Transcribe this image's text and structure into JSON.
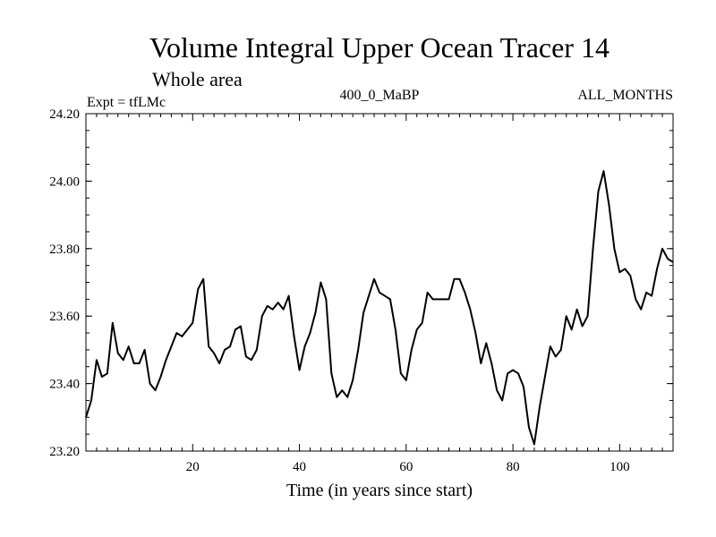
{
  "header": {
    "title": "Volume Integral Upper Ocean Tracer 14",
    "subtitle": "Whole area",
    "experiment": "Expt = tfLMc",
    "period": "400_0_MaBP",
    "months": "ALL_MONTHS"
  },
  "chart_data": {
    "type": "line",
    "title": "Volume Integral Upper Ocean Tracer 14",
    "subtitle": "Whole area",
    "xlabel": "Time (in years since start)",
    "ylabel": "",
    "xlim": [
      0,
      110
    ],
    "ylim": [
      23.2,
      24.2
    ],
    "x_ticks": [
      20,
      40,
      60,
      80,
      100
    ],
    "x_tick_labels": [
      "20",
      "40",
      "60",
      "80",
      "100"
    ],
    "y_ticks": [
      23.2,
      23.4,
      23.6,
      23.8,
      24.0,
      24.2
    ],
    "y_tick_labels": [
      "23.20",
      "23.40",
      "23.60",
      "23.80",
      "24.00",
      "24.20"
    ],
    "grid": false,
    "series": [
      {
        "name": "Volume Integral Upper Ocean Tracer 14",
        "x": [
          0,
          1,
          2,
          3,
          4,
          5,
          6,
          7,
          8,
          9,
          10,
          11,
          12,
          13,
          14,
          15,
          16,
          17,
          18,
          19,
          20,
          21,
          22,
          23,
          24,
          25,
          26,
          27,
          28,
          29,
          30,
          31,
          32,
          33,
          34,
          35,
          36,
          37,
          38,
          39,
          40,
          41,
          42,
          43,
          44,
          45,
          46,
          47,
          48,
          49,
          50,
          51,
          52,
          53,
          54,
          55,
          56,
          57,
          58,
          59,
          60,
          61,
          62,
          63,
          64,
          65,
          66,
          67,
          68,
          69,
          70,
          71,
          72,
          73,
          74,
          75,
          76,
          77,
          78,
          79,
          80,
          81,
          82,
          83,
          84,
          85,
          86,
          87,
          88,
          89,
          90,
          91,
          92,
          93,
          94,
          95,
          96,
          97,
          98,
          99,
          100,
          101,
          102,
          103,
          104,
          105,
          106,
          107,
          108,
          109,
          110
        ],
        "values": [
          23.3,
          23.35,
          23.47,
          23.42,
          23.43,
          23.58,
          23.49,
          23.47,
          23.51,
          23.46,
          23.46,
          23.5,
          23.4,
          23.38,
          23.42,
          23.47,
          23.51,
          23.55,
          23.54,
          23.56,
          23.58,
          23.68,
          23.71,
          23.51,
          23.49,
          23.46,
          23.5,
          23.51,
          23.56,
          23.57,
          23.48,
          23.47,
          23.5,
          23.6,
          23.63,
          23.62,
          23.64,
          23.62,
          23.66,
          23.54,
          23.44,
          23.51,
          23.55,
          23.61,
          23.7,
          23.65,
          23.43,
          23.36,
          23.38,
          23.36,
          23.41,
          23.5,
          23.61,
          23.66,
          23.71,
          23.67,
          23.66,
          23.65,
          23.56,
          23.43,
          23.41,
          23.5,
          23.56,
          23.58,
          23.67,
          23.65,
          23.65,
          23.65,
          23.65,
          23.71,
          23.71,
          23.67,
          23.62,
          23.55,
          23.46,
          23.52,
          23.46,
          23.38,
          23.35,
          23.43,
          23.44,
          23.43,
          23.39,
          23.27,
          23.22,
          23.33,
          23.42,
          23.51,
          23.48,
          23.5,
          23.6,
          23.56,
          23.62,
          23.57,
          23.6,
          23.8,
          23.97,
          24.03,
          23.93,
          23.8,
          23.73,
          23.74,
          23.72,
          23.65,
          23.62,
          23.67,
          23.66,
          23.74,
          23.8,
          23.77,
          23.76
        ]
      }
    ]
  }
}
